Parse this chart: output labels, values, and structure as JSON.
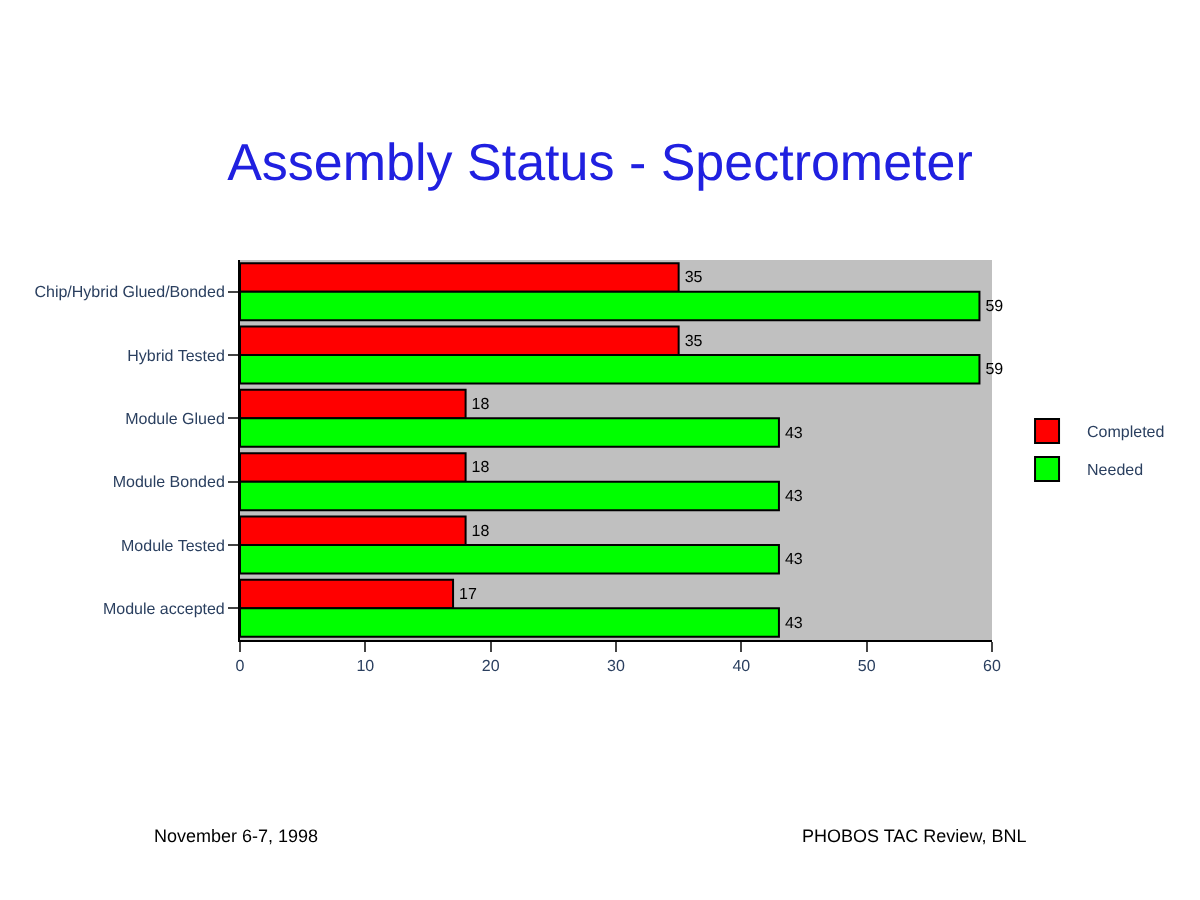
{
  "chart_data": {
    "type": "bar",
    "orientation": "horizontal",
    "title": "Assembly Status - Spectrometer",
    "categories": [
      "Chip/Hybrid Glued/Bonded",
      "Hybrid Tested",
      "Module Glued",
      "Module Bonded",
      "Module Tested",
      "Module accepted"
    ],
    "series": [
      {
        "name": "Completed",
        "color": "#ff0000",
        "values": [
          35,
          35,
          18,
          18,
          18,
          17
        ]
      },
      {
        "name": "Needed",
        "color": "#00ff00",
        "values": [
          59,
          59,
          43,
          43,
          43,
          43
        ]
      }
    ],
    "xlim": [
      0,
      60
    ],
    "xticks": [
      0,
      10,
      20,
      30,
      40,
      50,
      60
    ],
    "data_labels": true,
    "legend": "right",
    "grid": false,
    "annotations": [
      "November 6-7, 1998",
      "PHOBOS TAC Review, BNL"
    ]
  }
}
